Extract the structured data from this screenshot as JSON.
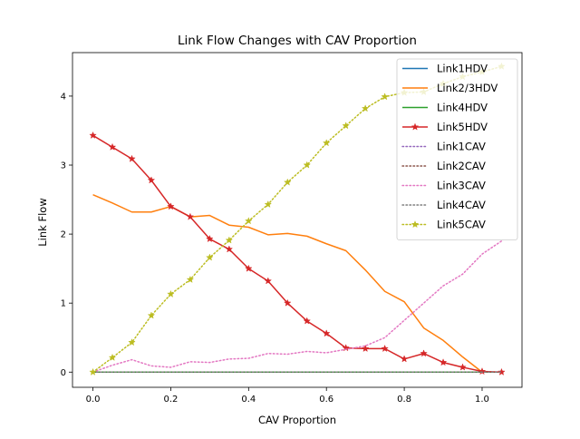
{
  "chart_data": {
    "type": "line",
    "title": "Link Flow Changes with CAV Proportion",
    "xlabel": "CAV Proportion",
    "ylabel": "Link Flow",
    "xlim": [
      -0.0525,
      1.1025
    ],
    "ylim": [
      -0.22,
      4.63
    ],
    "xticks": [
      0.0,
      0.2,
      0.4,
      0.6,
      0.8,
      1.0
    ],
    "xtick_labels": [
      "0.0",
      "0.2",
      "0.4",
      "0.6",
      "0.8",
      "1.0"
    ],
    "yticks": [
      0,
      1,
      2,
      3,
      4
    ],
    "ytick_labels": [
      "0",
      "1",
      "2",
      "3",
      "4"
    ],
    "grid": false,
    "legend_position": "top-right",
    "x": [
      0.0,
      0.05,
      0.1,
      0.15,
      0.2,
      0.25,
      0.3,
      0.35,
      0.4,
      0.45,
      0.5,
      0.55,
      0.6,
      0.65,
      0.7,
      0.75,
      0.8,
      0.85,
      0.9,
      0.95,
      1.0,
      1.05
    ],
    "series": [
      {
        "name": "Link1HDV",
        "color": "#1f77b4",
        "style": "solid",
        "marker": "none",
        "values": [
          0,
          0,
          0,
          0,
          0,
          0,
          0,
          0,
          0,
          0,
          0,
          0,
          0,
          0,
          0,
          0,
          0,
          0,
          0,
          0,
          0,
          0
        ]
      },
      {
        "name": "Link2/3HDV",
        "color": "#ff7f0e",
        "style": "solid",
        "marker": "none",
        "values": [
          2.57,
          2.45,
          2.32,
          2.32,
          2.4,
          2.25,
          2.27,
          2.13,
          2.1,
          1.99,
          2.01,
          1.97,
          1.86,
          1.76,
          1.48,
          1.17,
          1.02,
          0.64,
          0.46,
          0.22,
          0.0,
          0.0
        ]
      },
      {
        "name": "Link4HDV",
        "color": "#2ca02c",
        "style": "solid",
        "marker": "none",
        "values": [
          0,
          0,
          0,
          0,
          0,
          0,
          0,
          0,
          0,
          0,
          0,
          0,
          0,
          0,
          0,
          0,
          0,
          0,
          0,
          0,
          0,
          0
        ]
      },
      {
        "name": "Link5HDV",
        "color": "#d62728",
        "style": "solid",
        "marker": "star",
        "values": [
          3.43,
          3.26,
          3.09,
          2.78,
          2.4,
          2.25,
          1.93,
          1.78,
          1.5,
          1.32,
          1.0,
          0.74,
          0.56,
          0.35,
          0.34,
          0.34,
          0.19,
          0.27,
          0.14,
          0.07,
          0.01,
          0.0
        ]
      },
      {
        "name": "Link1CAV",
        "color": "#9467bd",
        "style": "dotted",
        "marker": "none",
        "values": [
          0,
          0,
          0,
          0,
          0,
          0,
          0,
          0,
          0,
          0,
          0,
          0,
          0,
          0,
          0,
          0,
          0,
          0,
          0,
          0,
          0,
          0
        ]
      },
      {
        "name": "Link2CAV",
        "color": "#8c564b",
        "style": "dotted",
        "marker": "none",
        "values": [
          0,
          0,
          0,
          0,
          0,
          0,
          0,
          0,
          0,
          0,
          0,
          0,
          0,
          0,
          0,
          0,
          0,
          0,
          0,
          0,
          0,
          0
        ]
      },
      {
        "name": "Link3CAV",
        "color": "#e377c2",
        "style": "dotted",
        "marker": "none",
        "values": [
          0.0,
          0.1,
          0.18,
          0.09,
          0.07,
          0.15,
          0.14,
          0.19,
          0.2,
          0.27,
          0.26,
          0.3,
          0.28,
          0.33,
          0.38,
          0.5,
          0.75,
          1.0,
          1.25,
          1.42,
          1.71,
          1.9
        ]
      },
      {
        "name": "Link4CAV",
        "color": "#7f7f7f",
        "style": "dotted",
        "marker": "none",
        "values": [
          0,
          0,
          0,
          0,
          0,
          0,
          0,
          0,
          0,
          0,
          0,
          0,
          0,
          0,
          0,
          0,
          0,
          0,
          0,
          0,
          0,
          0
        ]
      },
      {
        "name": "Link5CAV",
        "color": "#bcbd22",
        "style": "dotted",
        "marker": "star",
        "values": [
          0.0,
          0.21,
          0.43,
          0.82,
          1.13,
          1.34,
          1.66,
          1.91,
          2.19,
          2.43,
          2.75,
          3.0,
          3.32,
          3.57,
          3.82,
          3.99,
          4.05,
          4.06,
          4.18,
          4.28,
          4.35,
          4.43
        ]
      }
    ]
  }
}
